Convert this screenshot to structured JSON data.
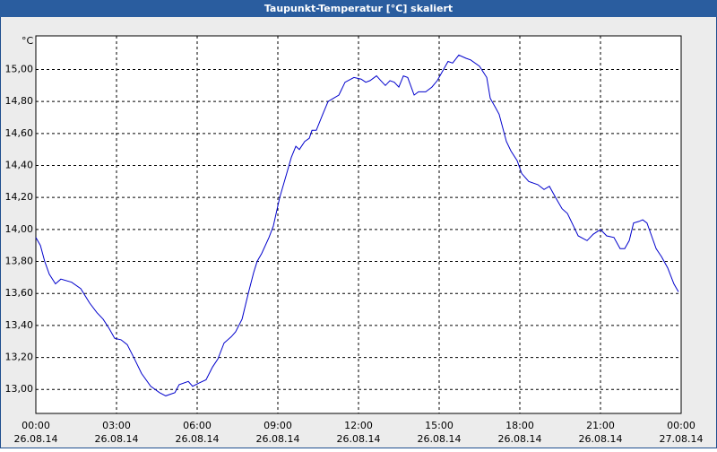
{
  "chart_data": {
    "type": "line",
    "title": "Taupunkt-Temperatur [°C] skaliert",
    "ylabel": "°C",
    "x": [
      0,
      0.17,
      0.33,
      0.5,
      0.73,
      0.93,
      1.33,
      1.67,
      2,
      2.27,
      2.5,
      2.73,
      2.93,
      3.17,
      3.4,
      3.67,
      3.93,
      4.27,
      4.6,
      4.83,
      5.17,
      5.33,
      5.67,
      5.83,
      6.07,
      6.33,
      6.57,
      6.77,
      7,
      7.27,
      7.43,
      7.67,
      7.9,
      8.1,
      8.23,
      8.4,
      8.67,
      8.83,
      9.07,
      9.33,
      9.5,
      9.67,
      9.8,
      10,
      10.17,
      10.27,
      10.43,
      10.67,
      10.87,
      11.07,
      11.27,
      11.5,
      11.83,
      12.1,
      12.27,
      12.43,
      12.67,
      12.83,
      13,
      13.17,
      13.33,
      13.5,
      13.67,
      13.83,
      14.07,
      14.23,
      14.5,
      14.73,
      14.93,
      15.33,
      15.5,
      15.73,
      16,
      16.17,
      16.5,
      16.77,
      16.9,
      17.1,
      17.23,
      17.5,
      17.67,
      17.9,
      18.07,
      18.33,
      18.67,
      18.9,
      19.1,
      19.33,
      19.57,
      19.77,
      20,
      20.17,
      20.5,
      20.73,
      21,
      21.23,
      21.5,
      21.73,
      21.9,
      22.07,
      22.23,
      22.43,
      22.57,
      22.73,
      22.9,
      23.07,
      23.27,
      23.5,
      23.73,
      23.9
    ],
    "series": [
      {
        "name": "Taupunkt",
        "color": "#0000cc",
        "values": [
          13.95,
          13.9,
          13.8,
          13.72,
          13.66,
          13.69,
          13.67,
          13.63,
          13.54,
          13.48,
          13.44,
          13.38,
          13.32,
          13.31,
          13.28,
          13.19,
          13.1,
          13.02,
          12.98,
          12.96,
          12.98,
          13.03,
          13.05,
          13.02,
          13.04,
          13.06,
          13.14,
          13.19,
          13.29,
          13.33,
          13.36,
          13.44,
          13.6,
          13.73,
          13.8,
          13.85,
          13.95,
          14.02,
          14.2,
          14.35,
          14.45,
          14.52,
          14.5,
          14.55,
          14.57,
          14.62,
          14.62,
          14.72,
          14.8,
          14.82,
          14.84,
          14.92,
          14.95,
          14.94,
          14.92,
          14.93,
          14.96,
          14.93,
          14.9,
          14.93,
          14.92,
          14.89,
          14.96,
          14.95,
          14.84,
          14.86,
          14.86,
          14.89,
          14.93,
          15.05,
          15.04,
          15.09,
          15.07,
          15.06,
          15.02,
          14.95,
          14.82,
          14.76,
          14.72,
          14.55,
          14.49,
          14.43,
          14.35,
          14.3,
          14.28,
          14.25,
          14.27,
          14.2,
          14.13,
          14.1,
          14.02,
          13.96,
          13.93,
          13.97,
          14,
          13.96,
          13.95,
          13.88,
          13.88,
          13.93,
          14.04,
          14.05,
          14.06,
          14.04,
          13.96,
          13.88,
          13.83,
          13.76,
          13.66,
          13.61
        ]
      }
    ],
    "xlim": [
      0,
      24
    ],
    "xticks": [
      {
        "value": 0,
        "label": "00:00"
      },
      {
        "value": 3,
        "label": "03:00"
      },
      {
        "value": 6,
        "label": "06:00"
      },
      {
        "value": 9,
        "label": "09:00"
      },
      {
        "value": 12,
        "label": "12:00"
      },
      {
        "value": 15,
        "label": "15:00"
      },
      {
        "value": 18,
        "label": "18:00"
      },
      {
        "value": 21,
        "label": "21:00"
      },
      {
        "value": 24,
        "label": "00:00"
      }
    ],
    "xtick_dates": [
      "26.08.14",
      "26.08.14",
      "26.08.14",
      "26.08.14",
      "26.08.14",
      "26.08.14",
      "26.08.14",
      "26.08.14",
      "27.08.14"
    ],
    "ylim": [
      12.85,
      15.21
    ],
    "yticks": [
      {
        "value": 13,
        "label": "13,00"
      },
      {
        "value": 13.2,
        "label": "13,20"
      },
      {
        "value": 13.4,
        "label": "13,40"
      },
      {
        "value": 13.6,
        "label": "13,60"
      },
      {
        "value": 13.8,
        "label": "13,80"
      },
      {
        "value": 14,
        "label": "14,00"
      },
      {
        "value": 14.2,
        "label": "14,20"
      },
      {
        "value": 14.4,
        "label": "14,40"
      },
      {
        "value": 14.6,
        "label": "14,60"
      },
      {
        "value": 14.8,
        "label": "14,80"
      },
      {
        "value": 15,
        "label": "15,00"
      }
    ],
    "grid": true
  }
}
